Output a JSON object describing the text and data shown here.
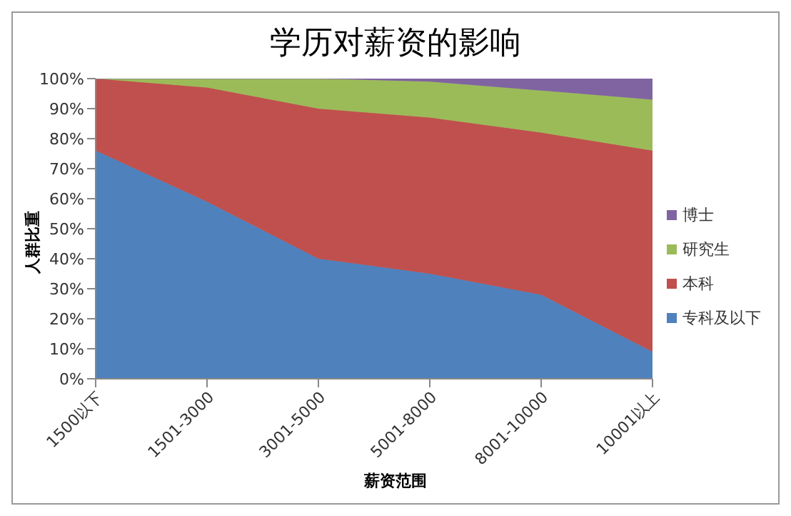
{
  "chart_data": {
    "type": "area",
    "stacked": true,
    "title": "学历对薪资的影响",
    "xlabel": "薪资范围",
    "ylabel": "人群比重",
    "categories": [
      "1500以下",
      "1501-3000",
      "3001-5000",
      "5001-8000",
      "8001-10000",
      "10001以上"
    ],
    "series": [
      {
        "name": "专科及以下",
        "color": "#4f81bd",
        "values": [
          76,
          59,
          40,
          35,
          28,
          9
        ]
      },
      {
        "name": "本科",
        "color": "#c0504d",
        "values": [
          24,
          38,
          50,
          52,
          54,
          67
        ]
      },
      {
        "name": "研究生",
        "color": "#9bbb59",
        "values": [
          0,
          3,
          10,
          12,
          14,
          17
        ]
      },
      {
        "name": "博士",
        "color": "#8064a2",
        "values": [
          0,
          0,
          0,
          1,
          4,
          7
        ]
      }
    ],
    "ylim": [
      0,
      100
    ],
    "yticks": [
      {
        "value": 0,
        "label": "0%"
      },
      {
        "value": 10,
        "label": "10%"
      },
      {
        "value": 20,
        "label": "20%"
      },
      {
        "value": 30,
        "label": "30%"
      },
      {
        "value": 40,
        "label": "40%"
      },
      {
        "value": 50,
        "label": "50%"
      },
      {
        "value": 60,
        "label": "60%"
      },
      {
        "value": 70,
        "label": "70%"
      },
      {
        "value": 80,
        "label": "80%"
      },
      {
        "value": 90,
        "label": "90%"
      },
      {
        "value": 100,
        "label": "100%"
      }
    ],
    "grid": false,
    "legend": "right"
  }
}
